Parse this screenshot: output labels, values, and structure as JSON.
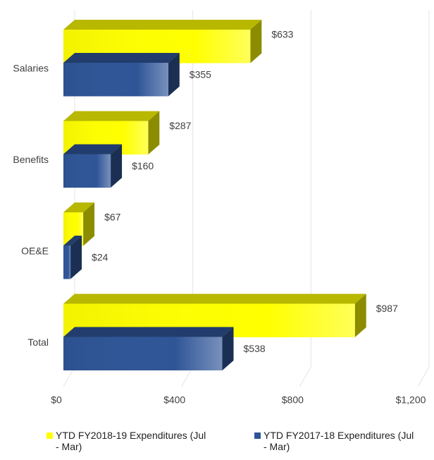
{
  "chart_data": {
    "type": "bar3d_horizontal",
    "categories": [
      "Salaries",
      "Benefits",
      "OE&E",
      "Total"
    ],
    "series": [
      {
        "name": "YTD FY2018-19 Expenditures (Jul - Mar)",
        "color": "#ffff00",
        "values": [
          633,
          287,
          67,
          987
        ],
        "value_labels": [
          "$633",
          "$287",
          "$67",
          "$987"
        ]
      },
      {
        "name": "YTD FY2017-18 Expenditures (Jul - Mar)",
        "color": "#2f5597",
        "values": [
          355,
          160,
          24,
          538
        ],
        "value_labels": [
          "$355",
          "$160",
          "$24",
          "$538"
        ]
      }
    ],
    "xlim": [
      0,
      1200
    ],
    "xticks": [
      {
        "value": 0,
        "label": "$0"
      },
      {
        "value": 400,
        "label": "$400"
      },
      {
        "value": 800,
        "label": "$800"
      },
      {
        "value": 1200,
        "label": "$1,200"
      }
    ],
    "grid": true,
    "legend": "bottom"
  }
}
